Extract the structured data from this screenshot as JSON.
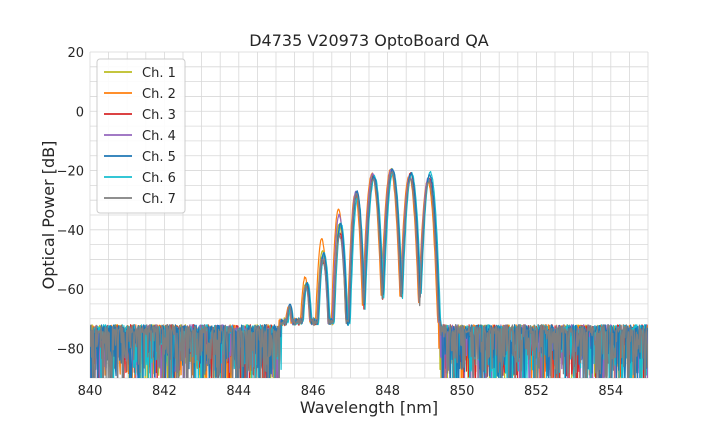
{
  "chart_data": {
    "type": "line",
    "title": "D4735 V20973 OptoBoard QA",
    "xlabel": "Wavelength [nm]",
    "ylabel": "Optical Power [dB]",
    "xlim": [
      840,
      855
    ],
    "ylim": [
      -90,
      20
    ],
    "xticks": [
      840,
      842,
      844,
      846,
      848,
      850,
      852,
      854
    ],
    "yticks": [
      -80,
      -60,
      -40,
      -20,
      0,
      20
    ],
    "x_minor_step": 0.5,
    "y_minor_step": 5,
    "grid": true,
    "legend_position": "top-left",
    "noise_floor_db": -72,
    "peaks": [
      {
        "x": 845.35,
        "y": -66
      },
      {
        "x": 845.8,
        "y": -58
      },
      {
        "x": 846.25,
        "y": -48
      },
      {
        "x": 846.7,
        "y": -38
      },
      {
        "x": 847.15,
        "y": -27
      },
      {
        "x": 847.6,
        "y": -21
      },
      {
        "x": 848.1,
        "y": -19.5
      },
      {
        "x": 848.6,
        "y": -21
      },
      {
        "x": 849.1,
        "y": -20.5
      }
    ],
    "series": [
      {
        "name": "Ch. 1",
        "color": "#bcbd22",
        "peak_offsets": [
          -1,
          0,
          1,
          0,
          -2,
          -1,
          0,
          -1,
          -2
        ],
        "shift": 0.0
      },
      {
        "name": "Ch. 2",
        "color": "#ff7f0e",
        "peak_offsets": [
          0,
          2,
          5,
          5,
          -1,
          0,
          0,
          -1,
          -3
        ],
        "shift": -0.02
      },
      {
        "name": "Ch. 3",
        "color": "#d62728",
        "peak_offsets": [
          0,
          -1,
          -3,
          -3,
          -1,
          -1,
          -1,
          0,
          -2
        ],
        "shift": 0.02
      },
      {
        "name": "Ch. 4",
        "color": "#9467bd",
        "peak_offsets": [
          0,
          -1,
          -1,
          3,
          0,
          0,
          0,
          -1,
          -2
        ],
        "shift": 0.0
      },
      {
        "name": "Ch. 5",
        "color": "#1f77b4",
        "peak_offsets": [
          1,
          0,
          0,
          0,
          0,
          -1,
          0,
          0,
          -1
        ],
        "shift": 0.03
      },
      {
        "name": "Ch. 6",
        "color": "#17becf",
        "peak_offsets": [
          0,
          0,
          0,
          0,
          -2,
          -1,
          -1,
          0,
          0
        ],
        "shift": 0.05
      },
      {
        "name": "Ch. 7",
        "color": "#7f7f7f",
        "peak_offsets": [
          0,
          -1,
          -2,
          -4,
          -1,
          -2,
          -1,
          -2,
          -3
        ],
        "shift": 0.01
      }
    ]
  }
}
